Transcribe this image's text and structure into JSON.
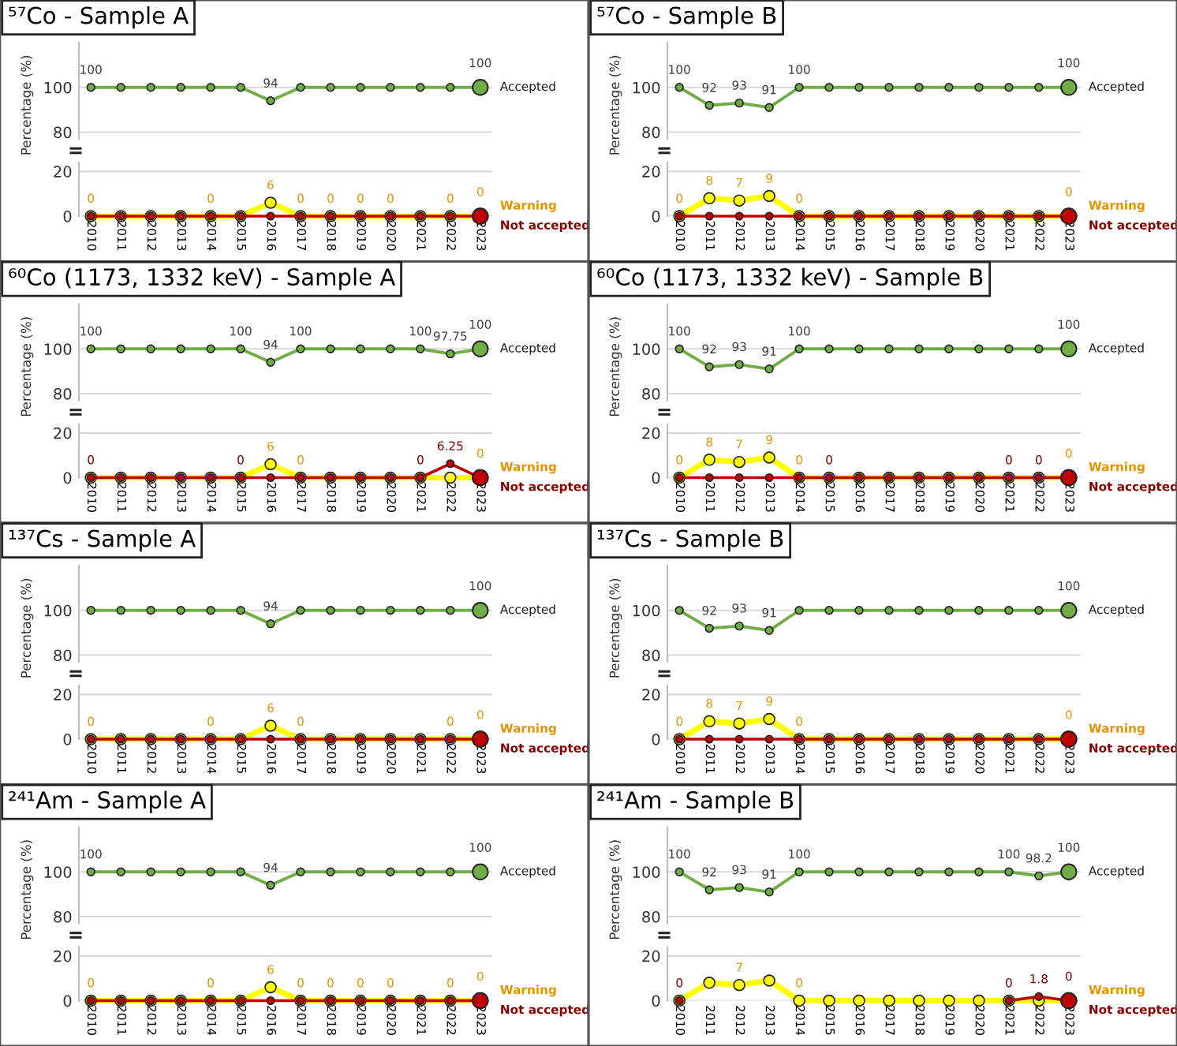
{
  "chart_data": [
    {
      "type": "line",
      "title": "⁵⁷Co - Sample A",
      "ylabel": "Percentage (%)",
      "categories": [
        "2010",
        "2011",
        "2012",
        "2013",
        "2014",
        "2015",
        "2016",
        "2017",
        "2018",
        "2019",
        "2020",
        "2021",
        "2022",
        "2023"
      ],
      "ylim": [
        77,
        120
      ],
      "yticks": [
        80,
        100
      ],
      "grid": "y",
      "marker": "circle",
      "tick_labels": "y",
      "series": [
        {
          "name": "Accepted",
          "color": "#70ad47",
          "values": [
            100,
            100,
            100,
            100,
            100,
            100,
            94,
            100,
            100,
            100,
            100,
            100,
            100,
            100
          ],
          "value_labels": [
            "100",
            null,
            null,
            null,
            null,
            null,
            "94",
            null,
            null,
            null,
            null,
            null,
            null,
            "100"
          ]
        }
      ]
    },
    {
      "type": "line",
      "categories": [
        "2010",
        "2011",
        "2012",
        "2013",
        "2014",
        "2015",
        "2016",
        "2017",
        "2018",
        "2019",
        "2020",
        "2021",
        "2022",
        "2023"
      ],
      "ylim": [
        0,
        24
      ],
      "yticks": [
        0,
        20
      ],
      "grid": "y",
      "marker": "circle",
      "series": [
        {
          "name": "Warning",
          "color": "#ffff00",
          "values": [
            0,
            0,
            0,
            0,
            0,
            0,
            6,
            0,
            0,
            0,
            0,
            0,
            0,
            0
          ],
          "value_labels": [
            "0",
            null,
            null,
            null,
            "0",
            null,
            "6",
            "0",
            "0",
            "0",
            "0",
            null,
            "0",
            "0"
          ]
        },
        {
          "name": "Not accepted",
          "color": "#c00000",
          "values": [
            0,
            0,
            0,
            0,
            0,
            0,
            0,
            0,
            0,
            0,
            0,
            0,
            0,
            0
          ]
        }
      ]
    },
    {
      "type": "line",
      "title": "⁵⁷Co - Sample B",
      "ylabel": "Percentage (%)",
      "categories": [
        "2010",
        "2011",
        "2012",
        "2013",
        "2014",
        "2015",
        "2016",
        "2017",
        "2018",
        "2019",
        "2020",
        "2021",
        "2022",
        "2023"
      ],
      "ylim": [
        77,
        120
      ],
      "yticks": [
        80,
        100
      ],
      "grid": "y",
      "marker": "circle",
      "tick_labels": "y",
      "series": [
        {
          "name": "Accepted",
          "color": "#70ad47",
          "values": [
            100,
            92,
            93,
            91,
            100,
            100,
            100,
            100,
            100,
            100,
            100,
            100,
            100,
            100
          ],
          "value_labels": [
            "100",
            "92",
            "93",
            "91",
            "100",
            null,
            null,
            null,
            null,
            null,
            null,
            null,
            null,
            "100"
          ]
        }
      ]
    },
    {
      "type": "line",
      "categories": [
        "2010",
        "2011",
        "2012",
        "2013",
        "2014",
        "2015",
        "2016",
        "2017",
        "2018",
        "2019",
        "2020",
        "2021",
        "2022",
        "2023"
      ],
      "ylim": [
        0,
        24
      ],
      "yticks": [
        0,
        20
      ],
      "grid": "y",
      "marker": "circle",
      "series": [
        {
          "name": "Warning",
          "color": "#ffff00",
          "values": [
            0,
            8,
            7,
            9,
            0,
            0,
            0,
            0,
            0,
            0,
            0,
            0,
            0,
            0
          ],
          "value_labels": [
            "0",
            "8",
            "7",
            "9",
            "0",
            null,
            null,
            null,
            null,
            null,
            null,
            null,
            null,
            "0"
          ]
        },
        {
          "name": "Not accepted",
          "color": "#c00000",
          "values": [
            0,
            0,
            0,
            0,
            0,
            0,
            0,
            0,
            0,
            0,
            0,
            0,
            0,
            0
          ]
        }
      ]
    },
    {
      "type": "line",
      "title": "⁶⁰Co (1173, 1332 keV) - Sample A",
      "ylabel": "Percentage (%)",
      "categories": [
        "2010",
        "2011",
        "2012",
        "2013",
        "2014",
        "2015",
        "2016",
        "2017",
        "2018",
        "2019",
        "2020",
        "2021",
        "2022",
        "2023"
      ],
      "ylim": [
        77,
        120
      ],
      "yticks": [
        80,
        100
      ],
      "grid": "y",
      "marker": "circle",
      "tick_labels": "y",
      "series": [
        {
          "name": "Accepted",
          "color": "#70ad47",
          "values": [
            100,
            100,
            100,
            100,
            100,
            100,
            94,
            100,
            100,
            100,
            100,
            100,
            97.75,
            100
          ],
          "value_labels": [
            "100",
            null,
            null,
            null,
            null,
            "100",
            "94",
            "100",
            null,
            null,
            null,
            "100",
            "97.75",
            "100"
          ]
        }
      ]
    },
    {
      "type": "line",
      "categories": [
        "2010",
        "2011",
        "2012",
        "2013",
        "2014",
        "2015",
        "2016",
        "2017",
        "2018",
        "2019",
        "2020",
        "2021",
        "2022",
        "2023"
      ],
      "ylim": [
        0,
        24
      ],
      "yticks": [
        0,
        20
      ],
      "grid": "y",
      "marker": "circle",
      "series": [
        {
          "name": "Warning",
          "color": "#ffff00",
          "values": [
            0,
            0,
            0,
            0,
            0,
            0,
            6,
            0,
            0,
            0,
            0,
            0,
            0,
            0
          ],
          "value_labels": [
            null,
            null,
            null,
            null,
            null,
            null,
            "6",
            "0",
            null,
            null,
            null,
            null,
            null,
            "0"
          ]
        },
        {
          "name": "Not accepted",
          "color": "#c00000",
          "values": [
            0,
            0,
            0,
            0,
            0,
            0,
            0,
            0,
            0,
            0,
            0,
            0,
            6.25,
            0
          ],
          "value_labels": [
            "0",
            null,
            null,
            null,
            null,
            "0",
            null,
            null,
            null,
            null,
            null,
            "0",
            "6.25",
            null
          ]
        }
      ]
    },
    {
      "type": "line",
      "title": "⁶⁰Co (1173, 1332 keV) - Sample B",
      "ylabel": "Percentage (%)",
      "categories": [
        "2010",
        "2011",
        "2012",
        "2013",
        "2014",
        "2015",
        "2016",
        "2017",
        "2018",
        "2019",
        "2020",
        "2021",
        "2022",
        "2023"
      ],
      "ylim": [
        77,
        120
      ],
      "yticks": [
        80,
        100
      ],
      "grid": "y",
      "marker": "circle",
      "tick_labels": "y",
      "series": [
        {
          "name": "Accepted",
          "color": "#70ad47",
          "values": [
            100,
            92,
            93,
            91,
            100,
            100,
            100,
            100,
            100,
            100,
            100,
            100,
            100,
            100
          ],
          "value_labels": [
            "100",
            "92",
            "93",
            "91",
            "100",
            null,
            null,
            null,
            null,
            null,
            null,
            null,
            null,
            "100"
          ]
        }
      ]
    },
    {
      "type": "line",
      "categories": [
        "2010",
        "2011",
        "2012",
        "2013",
        "2014",
        "2015",
        "2016",
        "2017",
        "2018",
        "2019",
        "2020",
        "2021",
        "2022",
        "2023"
      ],
      "ylim": [
        0,
        24
      ],
      "yticks": [
        0,
        20
      ],
      "grid": "y",
      "marker": "circle",
      "series": [
        {
          "name": "Warning",
          "color": "#ffff00",
          "values": [
            0,
            8,
            7,
            9,
            0,
            0,
            0,
            0,
            0,
            0,
            0,
            0,
            0,
            0
          ],
          "value_labels": [
            "0",
            "8",
            "7",
            "9",
            "0",
            null,
            null,
            null,
            null,
            null,
            null,
            null,
            null,
            "0"
          ]
        },
        {
          "name": "Not accepted",
          "color": "#c00000",
          "values": [
            0,
            0,
            0,
            0,
            0,
            0,
            0,
            0,
            0,
            0,
            0,
            0,
            0,
            0
          ],
          "value_labels": [
            null,
            null,
            null,
            null,
            null,
            "0",
            null,
            null,
            null,
            null,
            null,
            "0",
            "0",
            null
          ]
        }
      ]
    },
    {
      "type": "line",
      "title": "¹³⁷Cs - Sample A",
      "ylabel": "Percentage (%)",
      "categories": [
        "2010",
        "2011",
        "2012",
        "2013",
        "2014",
        "2015",
        "2016",
        "2017",
        "2018",
        "2019",
        "2020",
        "2021",
        "2022",
        "2023"
      ],
      "ylim": [
        77,
        120
      ],
      "yticks": [
        80,
        100
      ],
      "grid": "y",
      "marker": "circle",
      "tick_labels": "y",
      "series": [
        {
          "name": "Accepted",
          "color": "#70ad47",
          "values": [
            100,
            100,
            100,
            100,
            100,
            100,
            94,
            100,
            100,
            100,
            100,
            100,
            100,
            100
          ],
          "value_labels": [
            null,
            null,
            null,
            null,
            null,
            null,
            "94",
            null,
            null,
            null,
            null,
            null,
            null,
            "100"
          ]
        }
      ]
    },
    {
      "type": "line",
      "categories": [
        "2010",
        "2011",
        "2012",
        "2013",
        "2014",
        "2015",
        "2016",
        "2017",
        "2018",
        "2019",
        "2020",
        "2021",
        "2022",
        "2023"
      ],
      "ylim": [
        0,
        24
      ],
      "yticks": [
        0,
        20
      ],
      "grid": "y",
      "marker": "circle",
      "series": [
        {
          "name": "Warning",
          "color": "#ffff00",
          "values": [
            0,
            0,
            0,
            0,
            0,
            0,
            6,
            0,
            0,
            0,
            0,
            0,
            0,
            0
          ],
          "value_labels": [
            "0",
            null,
            null,
            null,
            "0",
            null,
            "6",
            "0",
            null,
            null,
            null,
            null,
            "0",
            "0"
          ]
        },
        {
          "name": "Not accepted",
          "color": "#c00000",
          "values": [
            0,
            0,
            0,
            0,
            0,
            0,
            0,
            0,
            0,
            0,
            0,
            0,
            0,
            0
          ]
        }
      ]
    },
    {
      "type": "line",
      "title": "¹³⁷Cs - Sample B",
      "ylabel": "Percentage (%)",
      "categories": [
        "2010",
        "2011",
        "2012",
        "2013",
        "2014",
        "2015",
        "2016",
        "2017",
        "2018",
        "2019",
        "2020",
        "2021",
        "2022",
        "2023"
      ],
      "ylim": [
        77,
        120
      ],
      "yticks": [
        80,
        100
      ],
      "grid": "y",
      "marker": "circle",
      "tick_labels": "y",
      "series": [
        {
          "name": "Accepted",
          "color": "#70ad47",
          "values": [
            100,
            92,
            93,
            91,
            100,
            100,
            100,
            100,
            100,
            100,
            100,
            100,
            100,
            100
          ],
          "value_labels": [
            null,
            "92",
            "93",
            "91",
            null,
            null,
            null,
            null,
            null,
            null,
            null,
            null,
            null,
            "100"
          ]
        }
      ]
    },
    {
      "type": "line",
      "categories": [
        "2010",
        "2011",
        "2012",
        "2013",
        "2014",
        "2015",
        "2016",
        "2017",
        "2018",
        "2019",
        "2020",
        "2021",
        "2022",
        "2023"
      ],
      "ylim": [
        0,
        24
      ],
      "yticks": [
        0,
        20
      ],
      "grid": "y",
      "marker": "circle",
      "series": [
        {
          "name": "Warning",
          "color": "#ffff00",
          "values": [
            0,
            8,
            7,
            9,
            0,
            0,
            0,
            0,
            0,
            0,
            0,
            0,
            0,
            0
          ],
          "value_labels": [
            "0",
            "8",
            "7",
            "9",
            "0",
            null,
            null,
            null,
            null,
            null,
            null,
            null,
            null,
            "0"
          ]
        },
        {
          "name": "Not accepted",
          "color": "#c00000",
          "values": [
            0,
            0,
            0,
            0,
            0,
            0,
            0,
            0,
            0,
            0,
            0,
            0,
            0,
            0
          ]
        }
      ]
    },
    {
      "type": "line",
      "title": "²⁴¹Am - Sample A",
      "ylabel": "Percentage (%)",
      "categories": [
        "2010",
        "2011",
        "2012",
        "2013",
        "2014",
        "2015",
        "2016",
        "2017",
        "2018",
        "2019",
        "2020",
        "2021",
        "2022",
        "2023"
      ],
      "ylim": [
        77,
        120
      ],
      "yticks": [
        80,
        100
      ],
      "grid": "y",
      "marker": "circle",
      "tick_labels": "y",
      "series": [
        {
          "name": "Accepted",
          "color": "#70ad47",
          "values": [
            100,
            100,
            100,
            100,
            100,
            100,
            94,
            100,
            100,
            100,
            100,
            100,
            100,
            100
          ],
          "value_labels": [
            "100",
            null,
            null,
            null,
            null,
            null,
            "94",
            null,
            null,
            null,
            null,
            null,
            null,
            "100"
          ]
        }
      ]
    },
    {
      "type": "line",
      "categories": [
        "2010",
        "2011",
        "2012",
        "2013",
        "2014",
        "2015",
        "2016",
        "2017",
        "2018",
        "2019",
        "2020",
        "2021",
        "2022",
        "2023"
      ],
      "ylim": [
        0,
        24
      ],
      "yticks": [
        0,
        20
      ],
      "grid": "y",
      "marker": "circle",
      "series": [
        {
          "name": "Warning",
          "color": "#ffff00",
          "values": [
            0,
            0,
            0,
            0,
            0,
            0,
            6,
            0,
            0,
            0,
            0,
            0,
            0,
            0
          ],
          "value_labels": [
            "0",
            null,
            null,
            null,
            "0",
            null,
            "6",
            "0",
            "0",
            "0",
            "0",
            null,
            "0",
            "0"
          ]
        },
        {
          "name": "Not accepted",
          "color": "#c00000",
          "values": [
            0,
            0,
            0,
            0,
            0,
            0,
            0,
            0,
            0,
            0,
            0,
            0,
            0,
            0
          ]
        }
      ]
    },
    {
      "type": "line",
      "title": "²⁴¹Am - Sample B",
      "ylabel": "Percentage (%)",
      "categories": [
        "2010",
        "2011",
        "2012",
        "2013",
        "2014",
        "2015",
        "2016",
        "2017",
        "2018",
        "2019",
        "2020",
        "2021",
        "2022",
        "2023"
      ],
      "ylim": [
        77,
        120
      ],
      "yticks": [
        80,
        100
      ],
      "grid": "y",
      "marker": "circle",
      "tick_labels": "y",
      "series": [
        {
          "name": "Accepted",
          "color": "#70ad47",
          "values": [
            100,
            92,
            93,
            91,
            100,
            100,
            100,
            100,
            100,
            100,
            100,
            100,
            98.2,
            100
          ],
          "value_labels": [
            "100",
            "92",
            "93",
            "91",
            "100",
            null,
            null,
            null,
            null,
            null,
            null,
            "100",
            "98.2",
            "100"
          ]
        }
      ]
    },
    {
      "type": "line",
      "categories": [
        "2010",
        "2011",
        "2012",
        "2013",
        "2014",
        "2015",
        "2016",
        "2017",
        "2018",
        "2019",
        "2020",
        "2021",
        "2022",
        "2023"
      ],
      "ylim": [
        0,
        24
      ],
      "yticks": [
        0,
        20
      ],
      "grid": "y",
      "marker": "circle",
      "series": [
        {
          "name": "Warning",
          "color": "#ffff00",
          "values": [
            0,
            8,
            7,
            9,
            0,
            0,
            0,
            0,
            0,
            0,
            0,
            0,
            0,
            0
          ],
          "value_labels": [
            null,
            null,
            "7",
            null,
            "0",
            null,
            null,
            null,
            null,
            null,
            null,
            null,
            null,
            null
          ]
        },
        {
          "name": "Not accepted",
          "color": "#c00000",
          "values": [
            0,
            null,
            null,
            null,
            null,
            null,
            null,
            null,
            null,
            null,
            null,
            0,
            1.8,
            0
          ],
          "value_labels": [
            "0",
            null,
            null,
            null,
            null,
            null,
            null,
            null,
            null,
            null,
            null,
            "0",
            "1.8",
            "0"
          ]
        }
      ]
    }
  ]
}
